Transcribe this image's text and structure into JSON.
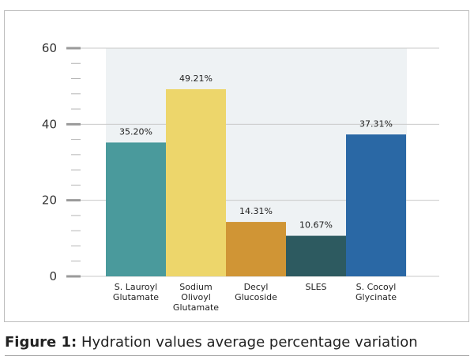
{
  "chart_data": {
    "type": "bar",
    "categories": [
      [
        "S. Lauroyl",
        "Glutamate"
      ],
      [
        "Sodium",
        "Olivoyl",
        "Glutamate"
      ],
      [
        "Decyl",
        "Glucoside"
      ],
      [
        "SLES"
      ],
      [
        "S. Cocoyl",
        "Glycinate"
      ]
    ],
    "values": [
      35.2,
      49.21,
      14.31,
      10.67,
      37.31
    ],
    "value_labels": [
      "35.20%",
      "49.21%",
      "14.31%",
      "10.67%",
      "37.31%"
    ],
    "colors": [
      "#4a9a9c",
      "#edd66b",
      "#d09535",
      "#2d5a60",
      "#2a68a5"
    ],
    "ylim": [
      0,
      60
    ],
    "yticks": [
      0,
      20,
      40,
      60
    ],
    "minor_step": 4,
    "grid": true,
    "title": "",
    "xlabel": "",
    "ylabel": ""
  },
  "caption": {
    "label": "Figure 1:",
    "text": " Hydration values average percentage variation"
  }
}
